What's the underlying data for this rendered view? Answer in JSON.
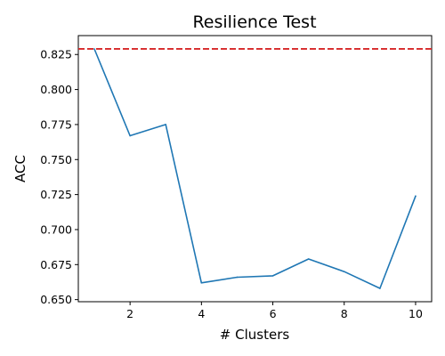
{
  "chart_data": {
    "type": "line",
    "title": "Resilience Test",
    "xlabel": "# Clusters",
    "ylabel": "ACC",
    "xlim": [
      0.55,
      10.45
    ],
    "ylim": [
      0.6485,
      0.8385
    ],
    "xticks": [
      2,
      4,
      6,
      8,
      10
    ],
    "xtick_labels": [
      "2",
      "4",
      "6",
      "8",
      "10"
    ],
    "yticks": [
      0.65,
      0.675,
      0.7,
      0.725,
      0.75,
      0.775,
      0.8,
      0.825
    ],
    "ytick_labels": [
      "0.650",
      "0.675",
      "0.700",
      "0.725",
      "0.750",
      "0.775",
      "0.800",
      "0.825"
    ],
    "grid": false,
    "series": [
      {
        "x": [
          1,
          2,
          3,
          4,
          5,
          6,
          7,
          8,
          9,
          10
        ],
        "values": [
          0.829,
          0.767,
          0.775,
          0.662,
          0.666,
          0.667,
          0.679,
          0.67,
          0.658,
          0.724
        ],
        "color": "#1f77b4"
      }
    ],
    "reference_line": {
      "y": 0.829,
      "color": "#d62728",
      "style": "dashed"
    }
  }
}
